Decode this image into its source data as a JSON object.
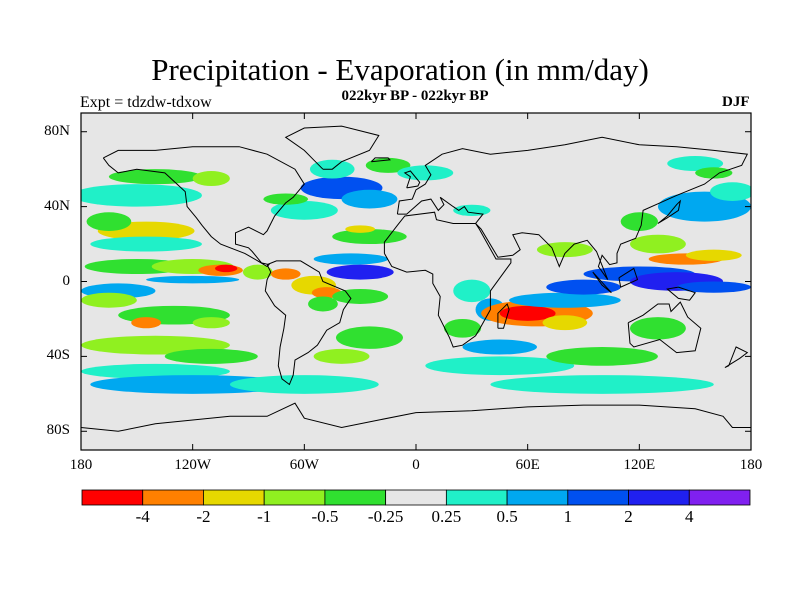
{
  "title": "Precipitation - Evaporation (in mm/day)",
  "subtitle": "022kyr BP - 022kyr BP",
  "left_label": "Expt = tdzdw-tdxow",
  "right_label": "DJF",
  "map": {
    "projection": "cylindrical-equidistant",
    "lon_range": [
      -180,
      180
    ],
    "lat_range": [
      -90,
      90
    ],
    "background_color": "#e6e6e6",
    "coastline_color": "#000000"
  },
  "axes": {
    "y_ticks": [
      {
        "label": "80N",
        "lat": 80
      },
      {
        "label": "40N",
        "lat": 40
      },
      {
        "label": "0",
        "lat": 0
      },
      {
        "label": "40S",
        "lat": -40
      },
      {
        "label": "80S",
        "lat": -80
      }
    ],
    "x_ticks": [
      {
        "label": "180",
        "lon": -180
      },
      {
        "label": "120W",
        "lon": -120
      },
      {
        "label": "60W",
        "lon": -60
      },
      {
        "label": "0",
        "lon": 0
      },
      {
        "label": "60E",
        "lon": 60
      },
      {
        "label": "120E",
        "lon": 120
      },
      {
        "label": "180",
        "lon": 180
      }
    ]
  },
  "colorbar": {
    "colors": [
      "#ff0000",
      "#ff8000",
      "#e6d800",
      "#90f020",
      "#30e030",
      "#e6e6e6",
      "#20f0c8",
      "#00a8f0",
      "#0050f0",
      "#2020f0",
      "#8020f0"
    ],
    "labels": [
      "-4",
      "-2",
      "-1",
      "-0.5",
      "-0.25",
      "0.25",
      "0.5",
      "1",
      "2",
      "4"
    ]
  },
  "fields": [
    {
      "lon": -145,
      "lat": 27,
      "rx": 26,
      "ry": 5,
      "color": "#e6d800"
    },
    {
      "lon": -145,
      "lat": 20,
      "rx": 30,
      "ry": 4,
      "color": "#20f0c8"
    },
    {
      "lon": -165,
      "lat": 32,
      "rx": 12,
      "ry": 5,
      "color": "#30e030"
    },
    {
      "lon": -150,
      "lat": 46,
      "rx": 35,
      "ry": 6,
      "color": "#20f0c8"
    },
    {
      "lon": -140,
      "lat": 56,
      "rx": 25,
      "ry": 4,
      "color": "#30e030"
    },
    {
      "lon": -150,
      "lat": 8,
      "rx": 28,
      "ry": 4,
      "color": "#30e030"
    },
    {
      "lon": -120,
      "lat": 8,
      "rx": 22,
      "ry": 4,
      "color": "#90f020"
    },
    {
      "lon": -105,
      "lat": 6,
      "rx": 12,
      "ry": 3,
      "color": "#ff8000"
    },
    {
      "lon": -102,
      "lat": 7,
      "rx": 6,
      "ry": 2,
      "color": "#ff0000"
    },
    {
      "lon": -120,
      "lat": 1,
      "rx": 25,
      "ry": 2,
      "color": "#00a8f0"
    },
    {
      "lon": -160,
      "lat": -5,
      "rx": 20,
      "ry": 4,
      "color": "#00a8f0"
    },
    {
      "lon": -165,
      "lat": -10,
      "rx": 15,
      "ry": 4,
      "color": "#90f020"
    },
    {
      "lon": -130,
      "lat": -18,
      "rx": 30,
      "ry": 5,
      "color": "#30e030"
    },
    {
      "lon": -145,
      "lat": -22,
      "rx": 8,
      "ry": 3,
      "color": "#ff8000"
    },
    {
      "lon": -110,
      "lat": -22,
      "rx": 10,
      "ry": 3,
      "color": "#90f020"
    },
    {
      "lon": -140,
      "lat": -34,
      "rx": 40,
      "ry": 5,
      "color": "#90f020"
    },
    {
      "lon": -110,
      "lat": -40,
      "rx": 25,
      "ry": 4,
      "color": "#30e030"
    },
    {
      "lon": -140,
      "lat": -48,
      "rx": 40,
      "ry": 4,
      "color": "#20f0c8"
    },
    {
      "lon": -120,
      "lat": -55,
      "rx": 55,
      "ry": 5,
      "color": "#00a8f0"
    },
    {
      "lon": -60,
      "lat": -55,
      "rx": 40,
      "ry": 5,
      "color": "#20f0c8"
    },
    {
      "lon": -85,
      "lat": 5,
      "rx": 8,
      "ry": 4,
      "color": "#90f020"
    },
    {
      "lon": -70,
      "lat": 4,
      "rx": 8,
      "ry": 3,
      "color": "#ff8000"
    },
    {
      "lon": -55,
      "lat": -2,
      "rx": 12,
      "ry": 5,
      "color": "#e6d800"
    },
    {
      "lon": -48,
      "lat": -6,
      "rx": 8,
      "ry": 3,
      "color": "#ff8000"
    },
    {
      "lon": -50,
      "lat": -12,
      "rx": 8,
      "ry": 4,
      "color": "#30e030"
    },
    {
      "lon": -30,
      "lat": 5,
      "rx": 18,
      "ry": 4,
      "color": "#2020f0"
    },
    {
      "lon": -35,
      "lat": 12,
      "rx": 20,
      "ry": 3,
      "color": "#00a8f0"
    },
    {
      "lon": -30,
      "lat": -8,
      "rx": 15,
      "ry": 4,
      "color": "#30e030"
    },
    {
      "lon": -25,
      "lat": -30,
      "rx": 18,
      "ry": 6,
      "color": "#30e030"
    },
    {
      "lon": -40,
      "lat": -40,
      "rx": 15,
      "ry": 4,
      "color": "#90f020"
    },
    {
      "lon": -40,
      "lat": 50,
      "rx": 22,
      "ry": 6,
      "color": "#0050f0"
    },
    {
      "lon": -25,
      "lat": 44,
      "rx": 15,
      "ry": 5,
      "color": "#00a8f0"
    },
    {
      "lon": -45,
      "lat": 60,
      "rx": 12,
      "ry": 5,
      "color": "#20f0c8"
    },
    {
      "lon": -15,
      "lat": 62,
      "rx": 12,
      "ry": 4,
      "color": "#30e030"
    },
    {
      "lon": -60,
      "lat": 38,
      "rx": 18,
      "ry": 5,
      "color": "#20f0c8"
    },
    {
      "lon": -70,
      "lat": 44,
      "rx": 12,
      "ry": 3,
      "color": "#30e030"
    },
    {
      "lon": 5,
      "lat": 58,
      "rx": 15,
      "ry": 4,
      "color": "#20f0c8"
    },
    {
      "lon": -25,
      "lat": 24,
      "rx": 20,
      "ry": 4,
      "color": "#30e030"
    },
    {
      "lon": -30,
      "lat": 28,
      "rx": 8,
      "ry": 2,
      "color": "#e6d800"
    },
    {
      "lon": 30,
      "lat": -5,
      "rx": 10,
      "ry": 6,
      "color": "#20f0c8"
    },
    {
      "lon": 40,
      "lat": -15,
      "rx": 8,
      "ry": 6,
      "color": "#00a8f0"
    },
    {
      "lon": 25,
      "lat": -25,
      "rx": 10,
      "ry": 5,
      "color": "#30e030"
    },
    {
      "lon": 65,
      "lat": -17,
      "rx": 30,
      "ry": 7,
      "color": "#ff8000"
    },
    {
      "lon": 60,
      "lat": -17,
      "rx": 15,
      "ry": 4,
      "color": "#ff0000"
    },
    {
      "lon": 80,
      "lat": -22,
      "rx": 12,
      "ry": 4,
      "color": "#e6d800"
    },
    {
      "lon": 80,
      "lat": -10,
      "rx": 30,
      "ry": 4,
      "color": "#00a8f0"
    },
    {
      "lon": 90,
      "lat": -3,
      "rx": 20,
      "ry": 4,
      "color": "#0050f0"
    },
    {
      "lon": 45,
      "lat": -45,
      "rx": 40,
      "ry": 5,
      "color": "#20f0c8"
    },
    {
      "lon": 45,
      "lat": -35,
      "rx": 20,
      "ry": 4,
      "color": "#00a8f0"
    },
    {
      "lon": 100,
      "lat": -40,
      "rx": 30,
      "ry": 5,
      "color": "#30e030"
    },
    {
      "lon": 100,
      "lat": -55,
      "rx": 60,
      "ry": 5,
      "color": "#20f0c8"
    },
    {
      "lon": 130,
      "lat": -25,
      "rx": 15,
      "ry": 6,
      "color": "#30e030"
    },
    {
      "lon": 120,
      "lat": 4,
      "rx": 30,
      "ry": 4,
      "color": "#0050f0"
    },
    {
      "lon": 140,
      "lat": 0,
      "rx": 25,
      "ry": 5,
      "color": "#2020f0"
    },
    {
      "lon": 160,
      "lat": -3,
      "rx": 20,
      "ry": 3,
      "color": "#0050f0"
    },
    {
      "lon": 145,
      "lat": 12,
      "rx": 20,
      "ry": 3,
      "color": "#ff8000"
    },
    {
      "lon": 160,
      "lat": 14,
      "rx": 15,
      "ry": 3,
      "color": "#e6d800"
    },
    {
      "lon": 130,
      "lat": 20,
      "rx": 15,
      "ry": 5,
      "color": "#90f020"
    },
    {
      "lon": 155,
      "lat": 40,
      "rx": 25,
      "ry": 8,
      "color": "#00a8f0"
    },
    {
      "lon": 170,
      "lat": 48,
      "rx": 12,
      "ry": 5,
      "color": "#20f0c8"
    },
    {
      "lon": 120,
      "lat": 32,
      "rx": 10,
      "ry": 5,
      "color": "#30e030"
    },
    {
      "lon": 80,
      "lat": 17,
      "rx": 15,
      "ry": 4,
      "color": "#90f020"
    },
    {
      "lon": 30,
      "lat": 38,
      "rx": 10,
      "ry": 3,
      "color": "#20f0c8"
    },
    {
      "lon": 150,
      "lat": 63,
      "rx": 15,
      "ry": 4,
      "color": "#20f0c8"
    },
    {
      "lon": 160,
      "lat": 58,
      "rx": 10,
      "ry": 3,
      "color": "#30e030"
    },
    {
      "lon": -110,
      "lat": 55,
      "rx": 10,
      "ry": 4,
      "color": "#90f020"
    }
  ]
}
